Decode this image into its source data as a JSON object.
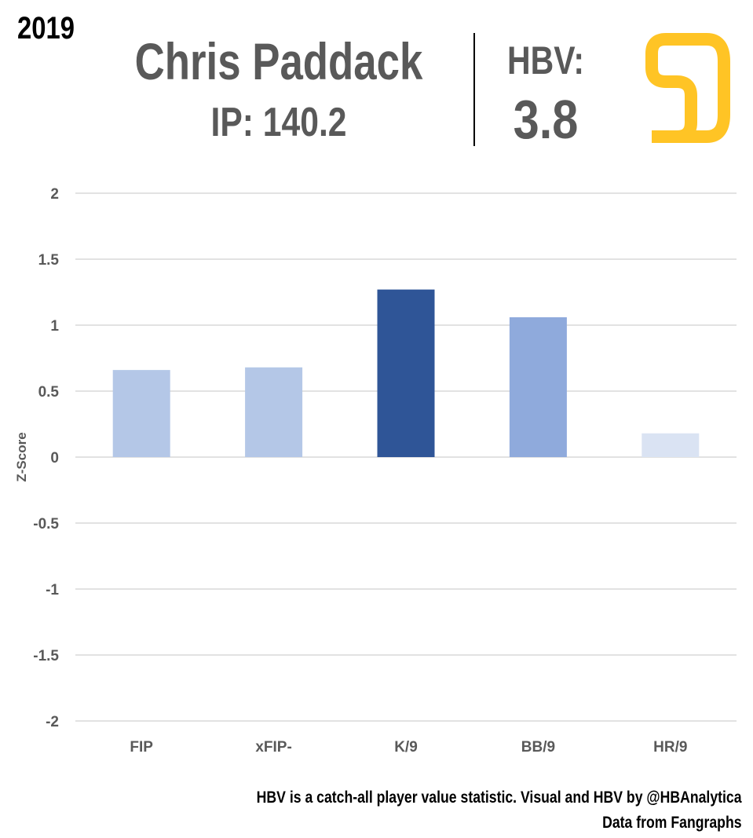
{
  "header": {
    "year": "2019",
    "player_name": "Chris Paddack",
    "ip_text": "IP: 140.2",
    "hbv_label": "HBV:",
    "hbv_value": "3.8"
  },
  "logo": {
    "name": "padres-sd-logo",
    "text": "SD",
    "color": "#FFC425"
  },
  "colors": {
    "gridline": "#D9D9D9",
    "text": "#595959"
  },
  "chart_data": {
    "type": "bar",
    "categories": [
      "FIP",
      "xFIP-",
      "K/9",
      "BB/9",
      "HR/9"
    ],
    "values": [
      0.66,
      0.68,
      1.27,
      1.06,
      0.18
    ],
    "bar_colors": [
      "#B4C7E7",
      "#B4C7E7",
      "#2F5597",
      "#8FAADC",
      "#DAE3F3"
    ],
    "ylabel": "Z-Score",
    "xlabel": "",
    "ylim": [
      -2,
      2
    ],
    "yticks": [
      2,
      1.5,
      1,
      0.5,
      0,
      -0.5,
      -1,
      -1.5,
      -2
    ],
    "ytick_labels": [
      "2",
      "1.5",
      "1",
      "0.5",
      "0",
      "-0.5",
      "-1",
      "-1.5",
      "-2"
    ],
    "grid": true,
    "legend": "none"
  },
  "footer": {
    "line1": "HBV is a catch-all player value statistic. Visual and HBV by @HBAnalytica",
    "line2": "Data from Fangraphs"
  }
}
